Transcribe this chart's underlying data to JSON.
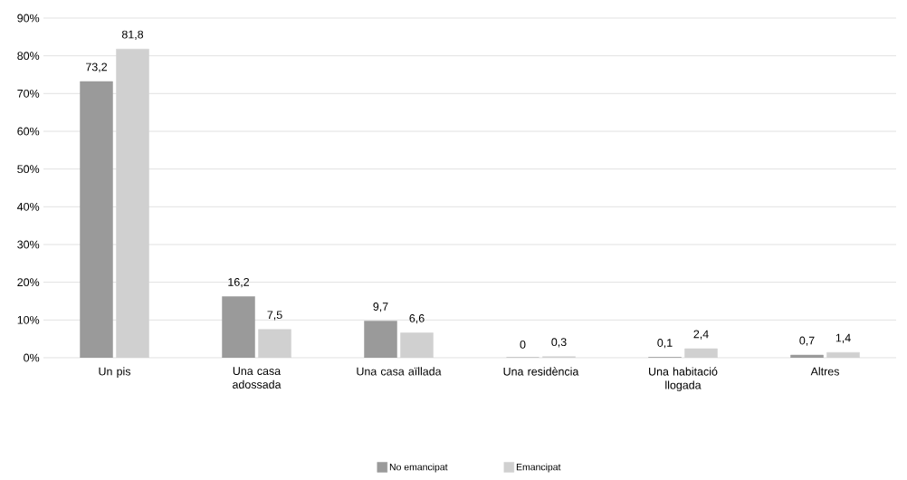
{
  "chart_data": {
    "type": "bar",
    "categories": [
      "Un pis",
      "Una casa adossada",
      "Una casa aïllada",
      "Una residència",
      "Una habitació llogada",
      "Altres"
    ],
    "series": [
      {
        "name": "No emancipat",
        "color": "#9a9a9a",
        "values": [
          73.2,
          16.2,
          9.7,
          0,
          0.1,
          0.7
        ],
        "value_labels": [
          "73,2",
          "16,2",
          "9,7",
          "0",
          "0,1",
          "0,7"
        ]
      },
      {
        "name": "Emancipat",
        "color": "#d0d0d0",
        "values": [
          81.8,
          7.5,
          6.6,
          0.3,
          2.4,
          1.4
        ],
        "value_labels": [
          "81,8",
          "7,5",
          "6,6",
          "0,3",
          "2,4",
          "1,4"
        ]
      }
    ],
    "ylim": [
      0,
      90
    ],
    "yticks": [
      {
        "value": 0,
        "label": "0%"
      },
      {
        "value": 10,
        "label": "10%"
      },
      {
        "value": 20,
        "label": "20%"
      },
      {
        "value": 30,
        "label": "30%"
      },
      {
        "value": 40,
        "label": "40%"
      },
      {
        "value": 50,
        "label": "50%"
      },
      {
        "value": 60,
        "label": "60%"
      },
      {
        "value": 70,
        "label": "70%"
      },
      {
        "value": 80,
        "label": "80%"
      },
      {
        "value": 90,
        "label": "90%"
      }
    ],
    "grid": "y",
    "legend": "bottom"
  }
}
